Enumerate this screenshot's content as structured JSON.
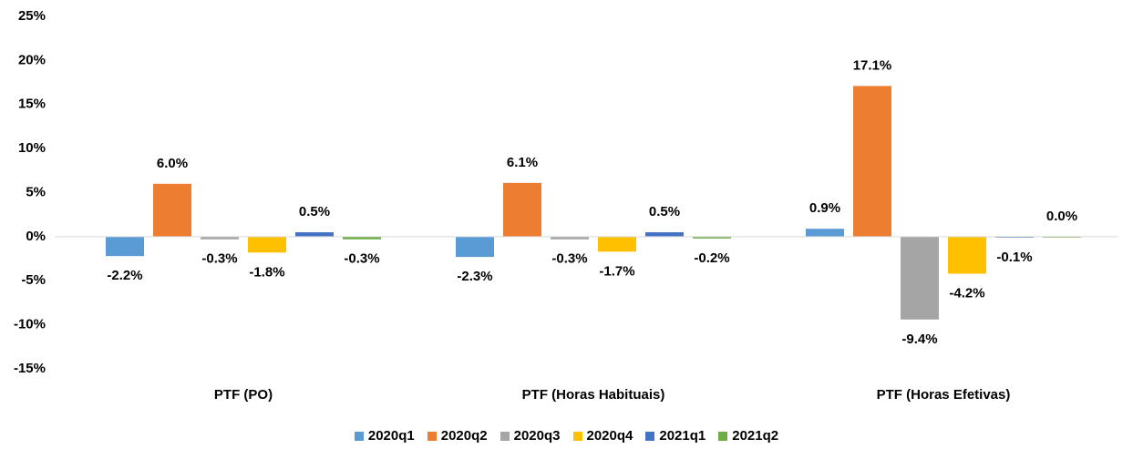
{
  "chart_data": {
    "type": "bar",
    "categories": [
      "PTF (PO)",
      "PTF (Horas Habituais)",
      "PTF (Horas Efetivas)"
    ],
    "series": [
      {
        "name": "2020q1",
        "color": "#5b9bd5",
        "values": [
          -2.2,
          -2.3,
          0.9
        ],
        "value_labels": [
          "-2.2%",
          "-2.3%",
          "0.9%"
        ]
      },
      {
        "name": "2020q2",
        "color": "#ed7d31",
        "values": [
          6.0,
          6.1,
          17.1
        ],
        "value_labels": [
          "6.0%",
          "6.1%",
          "17.1%"
        ]
      },
      {
        "name": "2020q3",
        "color": "#a5a5a5",
        "values": [
          -0.3,
          -0.3,
          -9.4
        ],
        "value_labels": [
          "-0.3%",
          "-0.3%",
          "-9.4%"
        ]
      },
      {
        "name": "2020q4",
        "color": "#ffc000",
        "values": [
          -1.8,
          -1.7,
          -4.2
        ],
        "value_labels": [
          "-1.8%",
          "-1.7%",
          "-4.2%"
        ]
      },
      {
        "name": "2021q1",
        "color": "#4472c4",
        "values": [
          0.5,
          0.5,
          -0.1
        ],
        "value_labels": [
          "0.5%",
          "0.5%",
          "-0.1%"
        ]
      },
      {
        "name": "2021q2",
        "color": "#70ad47",
        "values": [
          -0.3,
          -0.2,
          0.0
        ],
        "value_labels": [
          "-0.3%",
          "-0.2%",
          "0.0%"
        ]
      }
    ],
    "ylim": [
      -15,
      25
    ],
    "yticks": [
      {
        "value": -15,
        "label": "-15%"
      },
      {
        "value": -10,
        "label": "-10%"
      },
      {
        "value": -5,
        "label": "-5%"
      },
      {
        "value": 0,
        "label": "0%"
      },
      {
        "value": 5,
        "label": "5%"
      },
      {
        "value": 10,
        "label": "10%"
      },
      {
        "value": 15,
        "label": "15%"
      },
      {
        "value": 20,
        "label": "20%"
      },
      {
        "value": 25,
        "label": "25%"
      }
    ],
    "grid": false
  }
}
